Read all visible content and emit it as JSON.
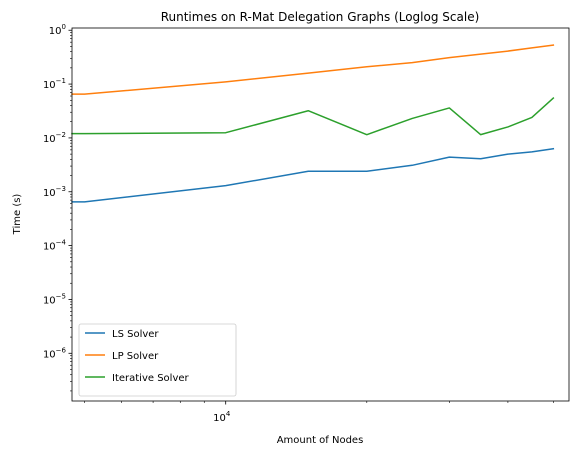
{
  "chart_data": {
    "type": "line",
    "title": "Runtimes on R-Mat Delegation Graphs (Loglog Scale)",
    "xlabel": "Amount of Nodes",
    "ylabel": "Time (s)",
    "xscale": "log",
    "yscale": "log",
    "xlim": [
      4700,
      54000
    ],
    "ylim": [
      1.3e-07,
      1.1
    ],
    "xticks": [
      {
        "value": 10000,
        "base": "10",
        "exp": "4"
      }
    ],
    "yticks": [
      {
        "value": 1e-06,
        "base": "10",
        "exp": "−6"
      },
      {
        "value": 1e-05,
        "base": "10",
        "exp": "−5"
      },
      {
        "value": 0.0001,
        "base": "10",
        "exp": "−4"
      },
      {
        "value": 0.001,
        "base": "10",
        "exp": "−3"
      },
      {
        "value": 0.01,
        "base": "10",
        "exp": "−2"
      },
      {
        "value": 0.1,
        "base": "10",
        "exp": "−1"
      },
      {
        "value": 1,
        "base": "10",
        "exp": "0"
      }
    ],
    "legend_position": "lower-left",
    "series": [
      {
        "name": "LS Solver",
        "color": "#1f77b4",
        "x": [
          4700,
          5000,
          10000,
          15000,
          20000,
          25000,
          30000,
          35000,
          40000,
          45000,
          50000
        ],
        "y": [
          0.00065,
          0.00065,
          0.0013,
          0.0024,
          0.0024,
          0.0031,
          0.0044,
          0.0041,
          0.005,
          0.0055,
          0.0063
        ]
      },
      {
        "name": "LP Solver",
        "color": "#ff7f0e",
        "x": [
          4700,
          5000,
          10000,
          15000,
          20000,
          25000,
          30000,
          35000,
          40000,
          45000,
          50000
        ],
        "y": [
          0.065,
          0.065,
          0.11,
          0.16,
          0.21,
          0.25,
          0.31,
          0.36,
          0.41,
          0.47,
          0.53
        ]
      },
      {
        "name": "Iterative Solver",
        "color": "#2ca02c",
        "x": [
          4700,
          5000,
          10000,
          15000,
          20000,
          25000,
          30000,
          35000,
          40000,
          45000,
          50000
        ],
        "y": [
          0.012,
          0.012,
          0.0125,
          0.032,
          0.0115,
          0.023,
          0.036,
          0.0115,
          0.016,
          0.024,
          0.055
        ]
      }
    ]
  }
}
